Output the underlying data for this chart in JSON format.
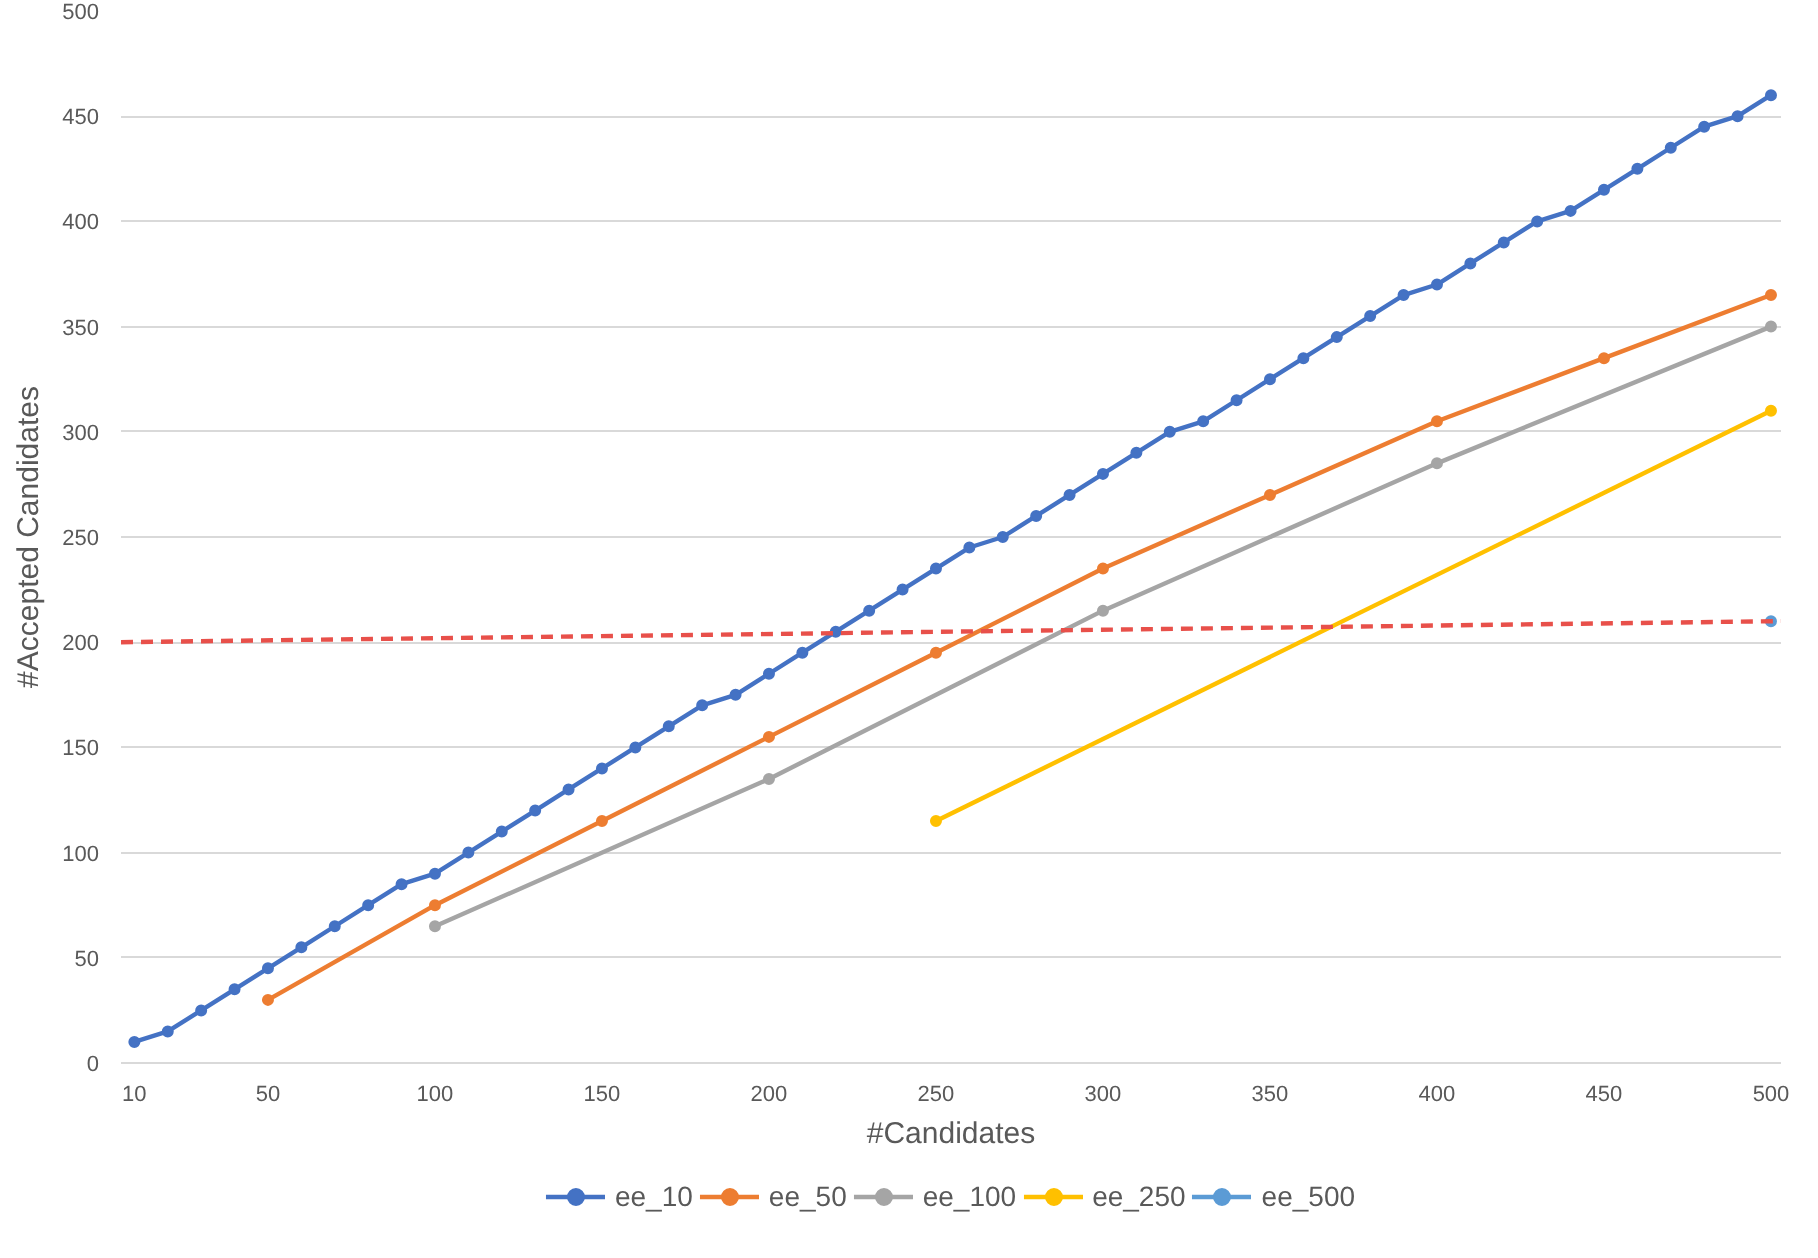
{
  "chart_data": {
    "type": "line",
    "xlabel": "#Candidates",
    "ylabel": "#Accepted Candidates",
    "xlim": [
      6,
      503
    ],
    "xticks": [
      10,
      50,
      100,
      150,
      200,
      250,
      300,
      350,
      400,
      450,
      500
    ],
    "ylim": [
      0,
      500
    ],
    "yticks": [
      0,
      50,
      100,
      150,
      200,
      250,
      300,
      350,
      400,
      450,
      500
    ],
    "grid": "y",
    "legend": "bottom",
    "marker": "circle",
    "line_style": "solid",
    "series": [
      {
        "name": "ee_10",
        "color": "#4472c4",
        "x": [
          10,
          20,
          30,
          40,
          50,
          60,
          70,
          80,
          90,
          100,
          110,
          120,
          130,
          140,
          150,
          160,
          170,
          180,
          190,
          200,
          210,
          220,
          230,
          240,
          250,
          260,
          270,
          280,
          290,
          300,
          310,
          320,
          330,
          340,
          350,
          360,
          370,
          380,
          390,
          400,
          410,
          420,
          430,
          440,
          450,
          460,
          470,
          480,
          490,
          500
        ],
        "values": [
          10,
          15,
          25,
          35,
          45,
          55,
          65,
          75,
          85,
          90,
          100,
          110,
          120,
          130,
          140,
          150,
          160,
          170,
          175,
          185,
          195,
          205,
          215,
          225,
          235,
          245,
          250,
          260,
          270,
          280,
          290,
          300,
          305,
          315,
          325,
          335,
          345,
          355,
          365,
          370,
          380,
          390,
          400,
          405,
          415,
          425,
          435,
          445,
          450,
          460
        ]
      },
      {
        "name": "ee_50",
        "color": "#ed7d31",
        "x": [
          50,
          100,
          150,
          200,
          250,
          300,
          350,
          400,
          450,
          500
        ],
        "values": [
          30,
          75,
          115,
          155,
          195,
          235,
          270,
          305,
          335,
          365
        ]
      },
      {
        "name": "ee_100",
        "color": "#a5a5a5",
        "x": [
          100,
          200,
          300,
          400,
          500
        ],
        "values": [
          65,
          135,
          215,
          285,
          350
        ]
      },
      {
        "name": "ee_250",
        "color": "#ffc000",
        "x": [
          250,
          500
        ],
        "values": [
          115,
          310
        ]
      },
      {
        "name": "ee_500",
        "color": "#5b9bd5",
        "x": [
          500
        ],
        "values": [
          210
        ]
      },
      {
        "color": "#e8504a",
        "x": [
          6,
          503
        ],
        "values": [
          200,
          210
        ],
        "marker": "none",
        "line_style": "dashed"
      }
    ]
  }
}
